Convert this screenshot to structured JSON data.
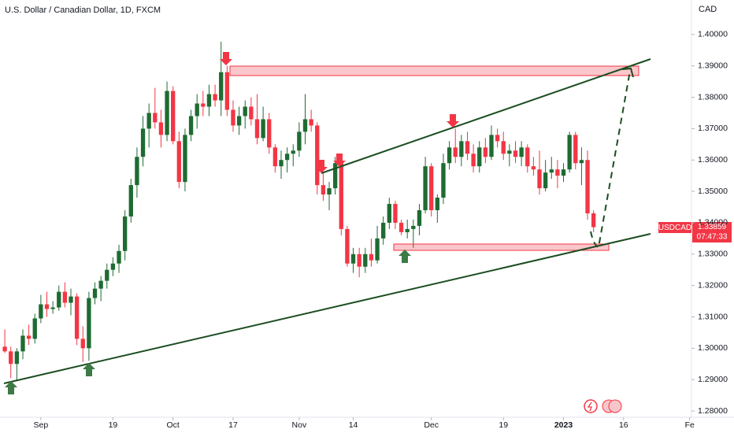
{
  "chart_data": {
    "type": "candlestick",
    "title": "U.S. Dollar / Canadian Dollar, 1D, FXCM",
    "currency": "CAD",
    "symbol": "USDCAD",
    "last_price": 1.33859,
    "countdown": "07:47:33",
    "up_color": "#1e6b32",
    "down_color": "#f23645",
    "xlim": [
      -0.8,
      114.3
    ],
    "xticks": [
      {
        "value": 6,
        "label": "Sep"
      },
      {
        "value": 18,
        "label": "19"
      },
      {
        "value": 28,
        "label": "Oct"
      },
      {
        "value": 38,
        "label": "17"
      },
      {
        "value": 49,
        "label": "Nov"
      },
      {
        "value": 58,
        "label": "14"
      },
      {
        "value": 71,
        "label": "Dec"
      },
      {
        "value": 83,
        "label": "19"
      },
      {
        "value": 93,
        "label": "2023"
      },
      {
        "value": 103,
        "label": "16"
      },
      {
        "value": 114,
        "label": "Fe"
      }
    ],
    "ylim": [
      1.278,
      1.411
    ],
    "yticks": [
      {
        "value": 1.28,
        "label": "1.28000"
      },
      {
        "value": 1.29,
        "label": "1.29000"
      },
      {
        "value": 1.3,
        "label": "1.30000"
      },
      {
        "value": 1.31,
        "label": "1.31000"
      },
      {
        "value": 1.32,
        "label": "1.32000"
      },
      {
        "value": 1.33,
        "label": "1.33000"
      },
      {
        "value": 1.34,
        "label": "1.34000"
      },
      {
        "value": 1.35,
        "label": "1.35000"
      },
      {
        "value": 1.36,
        "label": "1.36000"
      },
      {
        "value": 1.37,
        "label": "1.37000"
      },
      {
        "value": 1.38,
        "label": "1.38000"
      },
      {
        "value": 1.39,
        "label": "1.39000"
      },
      {
        "value": 1.4,
        "label": "1.40000"
      }
    ],
    "open": [
      1.3005,
      1.299,
      1.295,
      1.299,
      1.304,
      1.303,
      1.3095,
      1.314,
      1.3125,
      1.313,
      1.318,
      1.3145,
      1.3165,
      1.303,
      1.3,
      1.316,
      1.319,
      1.3215,
      1.325,
      1.327,
      1.331,
      1.342,
      1.352,
      1.361,
      1.37,
      1.375,
      1.372,
      1.368,
      1.382,
      1.366,
      1.353,
      1.368,
      1.374,
      1.378,
      1.377,
      1.381,
      1.379,
      1.388,
      1.376,
      1.371,
      1.374,
      1.377,
      1.373,
      1.367,
      1.373,
      1.364,
      1.358,
      1.36,
      1.362,
      1.363,
      1.369,
      1.373,
      1.371,
      1.352,
      1.349,
      1.351,
      1.359,
      1.338,
      1.327,
      1.33,
      1.326,
      1.33,
      1.328,
      1.335,
      1.34,
      1.346,
      1.34,
      1.337,
      1.338,
      1.339,
      1.344,
      1.358,
      1.344,
      1.348,
      1.359,
      1.364,
      1.361,
      1.366,
      1.362,
      1.358,
      1.364,
      1.361,
      1.368,
      1.366,
      1.362,
      1.363,
      1.361,
      1.364,
      1.358,
      1.357,
      1.351,
      1.356,
      1.357,
      1.355,
      1.357,
      1.368,
      1.359,
      1.36,
      1.343
    ],
    "high": [
      1.306,
      1.3005,
      1.3,
      1.306,
      1.3075,
      1.311,
      1.317,
      1.318,
      1.315,
      1.32,
      1.321,
      1.319,
      1.3175,
      1.307,
      1.318,
      1.321,
      1.323,
      1.327,
      1.329,
      1.333,
      1.344,
      1.354,
      1.364,
      1.374,
      1.378,
      1.383,
      1.376,
      1.385,
      1.3835,
      1.369,
      1.37,
      1.376,
      1.381,
      1.382,
      1.384,
      1.384,
      1.3977,
      1.39,
      1.379,
      1.377,
      1.379,
      1.38,
      1.381,
      1.377,
      1.375,
      1.365,
      1.363,
      1.364,
      1.365,
      1.372,
      1.381,
      1.376,
      1.372,
      1.356,
      1.353,
      1.361,
      1.361,
      1.339,
      1.332,
      1.332,
      1.332,
      1.335,
      1.339,
      1.342,
      1.348,
      1.347,
      1.341,
      1.341,
      1.341,
      1.346,
      1.361,
      1.359,
      1.349,
      1.362,
      1.366,
      1.37,
      1.368,
      1.369,
      1.365,
      1.366,
      1.367,
      1.371,
      1.37,
      1.369,
      1.365,
      1.366,
      1.366,
      1.365,
      1.361,
      1.363,
      1.36,
      1.361,
      1.36,
      1.359,
      1.369,
      1.369,
      1.364,
      1.363,
      1.344
    ],
    "low": [
      1.2985,
      1.2905,
      1.2895,
      1.2965,
      1.301,
      1.3015,
      1.308,
      1.31,
      1.311,
      1.312,
      1.313,
      1.3105,
      1.301,
      1.2956,
      1.296,
      1.314,
      1.315,
      1.319,
      1.323,
      1.324,
      1.328,
      1.34,
      1.348,
      1.358,
      1.364,
      1.37,
      1.364,
      1.366,
      1.365,
      1.351,
      1.35,
      1.366,
      1.37,
      1.374,
      1.374,
      1.377,
      1.374,
      1.374,
      1.369,
      1.368,
      1.37,
      1.371,
      1.365,
      1.366,
      1.362,
      1.356,
      1.354,
      1.356,
      1.358,
      1.361,
      1.365,
      1.369,
      1.349,
      1.347,
      1.344,
      1.349,
      1.336,
      1.326,
      1.324,
      1.3226,
      1.324,
      1.326,
      1.327,
      1.333,
      1.338,
      1.338,
      1.336,
      1.335,
      1.332,
      1.336,
      1.343,
      1.342,
      1.34,
      1.346,
      1.357,
      1.359,
      1.358,
      1.36,
      1.356,
      1.356,
      1.359,
      1.36,
      1.364,
      1.36,
      1.358,
      1.359,
      1.358,
      1.356,
      1.355,
      1.349,
      1.35,
      1.354,
      1.351,
      1.353,
      1.356,
      1.357,
      1.352,
      1.341,
      1.337
    ],
    "close": [
      1.299,
      1.295,
      1.299,
      1.304,
      1.303,
      1.3095,
      1.314,
      1.3125,
      1.313,
      1.318,
      1.3145,
      1.3165,
      1.303,
      1.3,
      1.316,
      1.319,
      1.3215,
      1.325,
      1.327,
      1.331,
      1.342,
      1.352,
      1.361,
      1.37,
      1.375,
      1.372,
      1.368,
      1.382,
      1.366,
      1.353,
      1.368,
      1.374,
      1.378,
      1.377,
      1.381,
      1.379,
      1.388,
      1.376,
      1.371,
      1.374,
      1.377,
      1.373,
      1.367,
      1.373,
      1.364,
      1.358,
      1.36,
      1.362,
      1.363,
      1.369,
      1.373,
      1.371,
      1.352,
      1.349,
      1.351,
      1.359,
      1.338,
      1.327,
      1.33,
      1.326,
      1.33,
      1.328,
      1.335,
      1.34,
      1.346,
      1.34,
      1.337,
      1.338,
      1.339,
      1.344,
      1.358,
      1.344,
      1.348,
      1.359,
      1.364,
      1.361,
      1.366,
      1.362,
      1.358,
      1.364,
      1.361,
      1.368,
      1.366,
      1.362,
      1.363,
      1.361,
      1.364,
      1.358,
      1.357,
      1.351,
      1.356,
      1.357,
      1.355,
      1.357,
      1.368,
      1.359,
      1.36,
      1.343,
      1.33859
    ]
  }
}
